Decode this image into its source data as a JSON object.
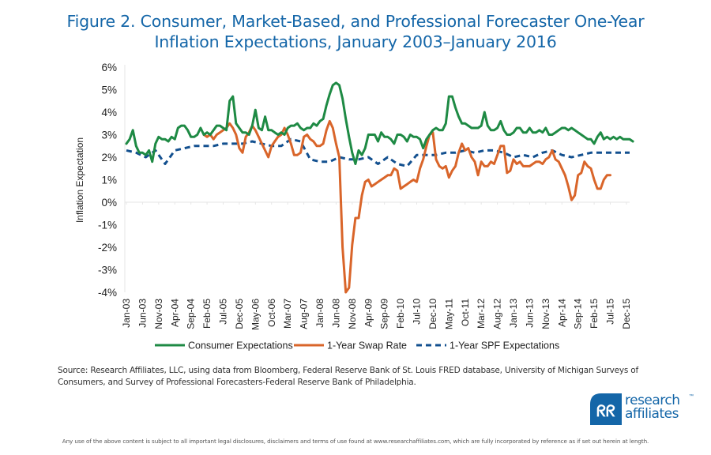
{
  "header": {
    "title_line1": "Figure 2. Consumer, Market-Based, and Professional Forecaster One-Year",
    "title_line2": "Inflation Expectations, January 2003–January 2016"
  },
  "footer": {
    "source": "Source: Research Affiliates, LLC, using data from Bloomberg, Federal Reserve Bank of St. Louis FRED database, University of Michigan Surveys of Consumers, and Survey of Professional Forecasters-Federal Reserve Bank of Philadelphia.",
    "disclaimer": "Any use of the above content is subject to all important legal disclosures, disclaimers and terms of use found at www.researchaffiliates.com, which are fully incorporated by reference as if set out herein at length.",
    "logo_line1": "research",
    "logo_line2": "affiliates",
    "logo_tm": "™"
  },
  "colors": {
    "title": "#1466a8",
    "consumer": "#1e8a44",
    "swap": "#d9652a",
    "spf": "#13508f",
    "grid": "#e6e6e6",
    "logo": "#1466a8"
  },
  "chart_data": {
    "type": "line",
    "title": "Figure 2. Consumer, Market-Based, and Professional Forecaster One-Year Inflation Expectations, January 2003–January 2016",
    "xlabel": "",
    "ylabel": "Inflation Expectation",
    "ylim": [
      -4,
      6
    ],
    "yticks": [
      6,
      5,
      4,
      3,
      2,
      1,
      0,
      -1,
      -2,
      -3,
      -4
    ],
    "ytick_labels": [
      "6%",
      "5%",
      "4%",
      "3%",
      "2%",
      "1%",
      "0%",
      "-1%",
      "-2%",
      "-3%",
      "-4%"
    ],
    "x_start": "Jan-03",
    "x_end": "Jan-16",
    "x_tick_labels": [
      "Jan-03",
      "Jun-03",
      "Nov-03",
      "Apr-04",
      "Sep-04",
      "Feb-05",
      "Jul-05",
      "Dec-05",
      "May-06",
      "Oct-06",
      "Mar-07",
      "Aug-07",
      "Jan-08",
      "Jun-08",
      "Nov-08",
      "Apr-09",
      "Sep-09",
      "Feb-10",
      "Jul-10",
      "Dec-10",
      "May-11",
      "Oct-11",
      "Mar-12",
      "Aug-12",
      "Jan-13",
      "Jun-13",
      "Nov-13",
      "Apr-14",
      "Sep-14",
      "Feb-15",
      "Jul-15",
      "Dec-15"
    ],
    "x_tick_months": [
      0,
      5,
      10,
      15,
      20,
      25,
      30,
      35,
      40,
      45,
      50,
      55,
      60,
      65,
      70,
      75,
      80,
      85,
      90,
      95,
      100,
      105,
      110,
      115,
      120,
      125,
      130,
      135,
      140,
      145,
      150,
      155
    ],
    "grid": false,
    "legend_position": "bottom",
    "legend": [
      "Consumer Expectations",
      "1-Year Swap Rate",
      "1-Year SPF Expectations"
    ],
    "series": [
      {
        "name": "Consumer Expectations",
        "style": "solid",
        "start_month": 0,
        "values": [
          2.6,
          2.8,
          3.2,
          2.5,
          2.2,
          2.2,
          2.1,
          2.3,
          1.8,
          2.6,
          2.9,
          2.8,
          2.8,
          2.7,
          2.9,
          2.8,
          3.3,
          3.4,
          3.4,
          3.2,
          2.9,
          2.9,
          3.0,
          3.3,
          3.0,
          3.1,
          3.0,
          3.2,
          3.4,
          3.4,
          3.3,
          3.2,
          4.5,
          4.7,
          3.5,
          3.3,
          3.1,
          3.1,
          3.0,
          3.4,
          4.1,
          3.3,
          3.2,
          3.8,
          3.2,
          3.2,
          3.1,
          3.0,
          3.1,
          3.0,
          3.3,
          3.4,
          3.4,
          3.5,
          3.3,
          3.2,
          3.3,
          3.3,
          3.5,
          3.4,
          3.6,
          3.7,
          4.3,
          4.8,
          5.2,
          5.3,
          5.2,
          4.6,
          3.7,
          2.9,
          2.2,
          1.7,
          2.3,
          2.1,
          2.4,
          3.0,
          3.0,
          3.0,
          2.7,
          3.1,
          2.9,
          2.9,
          2.8,
          2.6,
          3.0,
          3.0,
          2.9,
          2.7,
          3.0,
          2.9,
          2.9,
          2.8,
          2.4,
          2.8,
          3.0,
          3.2,
          3.3,
          3.2,
          3.2,
          3.5,
          4.7,
          4.7,
          4.2,
          3.8,
          3.5,
          3.5,
          3.4,
          3.3,
          3.3,
          3.3,
          3.4,
          4.0,
          3.4,
          3.2,
          3.2,
          3.3,
          3.6,
          3.2,
          3.0,
          3.0,
          3.1,
          3.3,
          3.3,
          3.1,
          3.1,
          3.3,
          3.1,
          3.1,
          3.2,
          3.1,
          3.3,
          3.0,
          3.0,
          3.1,
          3.2,
          3.3,
          3.3,
          3.2,
          3.3,
          3.2,
          3.1,
          3.0,
          2.9,
          2.8,
          2.8,
          2.6,
          2.9,
          3.1,
          2.8,
          2.9,
          2.8,
          2.9,
          2.8,
          2.9,
          2.8,
          2.8,
          2.8,
          2.7
        ]
      },
      {
        "name": "1-Year Swap Rate",
        "style": "solid",
        "start_month": 24,
        "values": [
          3.0,
          2.9,
          3.0,
          2.8,
          3.0,
          3.1,
          3.2,
          3.3,
          3.5,
          3.3,
          3.0,
          2.4,
          2.2,
          2.9,
          3.1,
          3.4,
          3.2,
          2.9,
          2.6,
          2.3,
          2.0,
          2.5,
          2.7,
          2.9,
          3.0,
          3.3,
          3.0,
          2.6,
          2.1,
          2.1,
          2.2,
          2.9,
          3.0,
          2.8,
          2.7,
          2.5,
          2.5,
          2.6,
          3.2,
          3.6,
          3.3,
          2.6,
          2.0,
          -2.0,
          -4.0,
          -3.8,
          -1.9,
          -0.7,
          -0.7,
          0.3,
          0.9,
          1.0,
          0.7,
          0.8,
          0.9,
          1.0,
          1.1,
          1.2,
          1.2,
          1.5,
          1.4,
          0.6,
          0.7,
          0.8,
          0.9,
          1.0,
          0.9,
          1.5,
          1.9,
          2.5,
          3.0,
          3.1,
          1.9,
          1.6,
          1.5,
          1.6,
          1.1,
          1.4,
          1.6,
          2.2,
          2.6,
          2.3,
          2.4,
          2.0,
          1.8,
          1.2,
          1.8,
          1.6,
          1.6,
          1.8,
          1.7,
          2.1,
          2.5,
          2.5,
          1.3,
          1.4,
          1.9,
          1.7,
          1.8,
          1.6,
          1.6,
          1.6,
          1.7,
          1.8,
          1.8,
          1.7,
          1.9,
          2.0,
          2.3,
          1.9,
          1.8,
          1.5,
          1.2,
          0.7,
          0.1,
          0.3,
          1.2,
          1.3,
          1.8,
          1.6,
          1.5,
          1.0,
          0.6,
          0.6,
          1.0,
          1.2,
          1.2
        ]
      },
      {
        "name": "1-Year SPF Expectations",
        "style": "dashed",
        "quarterly_start_month": 0,
        "values": [
          2.3,
          2.2,
          2.0,
          2.3,
          1.7,
          2.3,
          2.4,
          2.5,
          2.5,
          2.5,
          2.6,
          2.6,
          2.6,
          2.7,
          2.6,
          2.5,
          2.5,
          2.8,
          2.7,
          1.9,
          1.8,
          1.8,
          2.0,
          1.9,
          1.9,
          2.0,
          1.7,
          2.0,
          1.7,
          1.6,
          2.1,
          2.1,
          2.1,
          2.2,
          2.2,
          2.3,
          2.2,
          2.3,
          2.3,
          2.2,
          2.0,
          2.1,
          2.0,
          2.2,
          2.3,
          2.1,
          2.0,
          2.1,
          2.2,
          2.2,
          2.2,
          2.2,
          2.2
        ]
      }
    ]
  }
}
